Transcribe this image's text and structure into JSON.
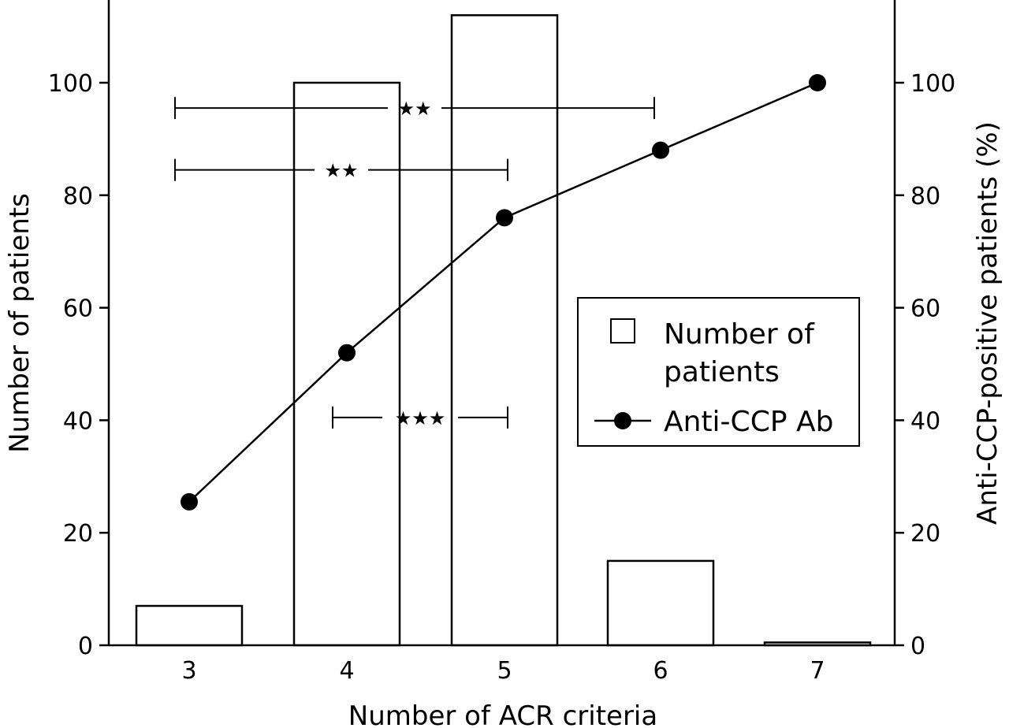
{
  "chart_data": {
    "type": "bar",
    "categories": [
      "3",
      "4",
      "5",
      "6",
      "7"
    ],
    "xlabel": "Number of ACR criteria",
    "ylabel": "Number of patients",
    "y2label": "Anti-CCP-positive patients (%)",
    "ylim": [
      0,
      115
    ],
    "y2lim": [
      0,
      115
    ],
    "yticks": [
      "0",
      "20",
      "40",
      "60",
      "80",
      "100"
    ],
    "y2ticks": [
      "0",
      "20",
      "40",
      "60",
      "80",
      "100"
    ],
    "grid": false,
    "legend_position": "center-right",
    "series": [
      {
        "name": "Number of patients",
        "type": "bar",
        "axis": "left",
        "values": [
          7,
          100,
          112,
          15,
          0.5
        ]
      },
      {
        "name": "Anti-CCP Ab",
        "type": "line",
        "axis": "right",
        "values": [
          25.5,
          52,
          76,
          88,
          100
        ]
      }
    ],
    "legend": {
      "bar_label_line1": "Number of",
      "bar_label_line2": "patients",
      "line_label": "Anti-CCP Ab"
    },
    "significance": [
      {
        "from": "3",
        "to": "6",
        "level": 95.5,
        "label": "★★"
      },
      {
        "from": "3",
        "to": "5",
        "level": 84.5,
        "label": "★★"
      },
      {
        "from": "4",
        "to": "5",
        "level": 40.5,
        "label": "★★★"
      }
    ]
  }
}
